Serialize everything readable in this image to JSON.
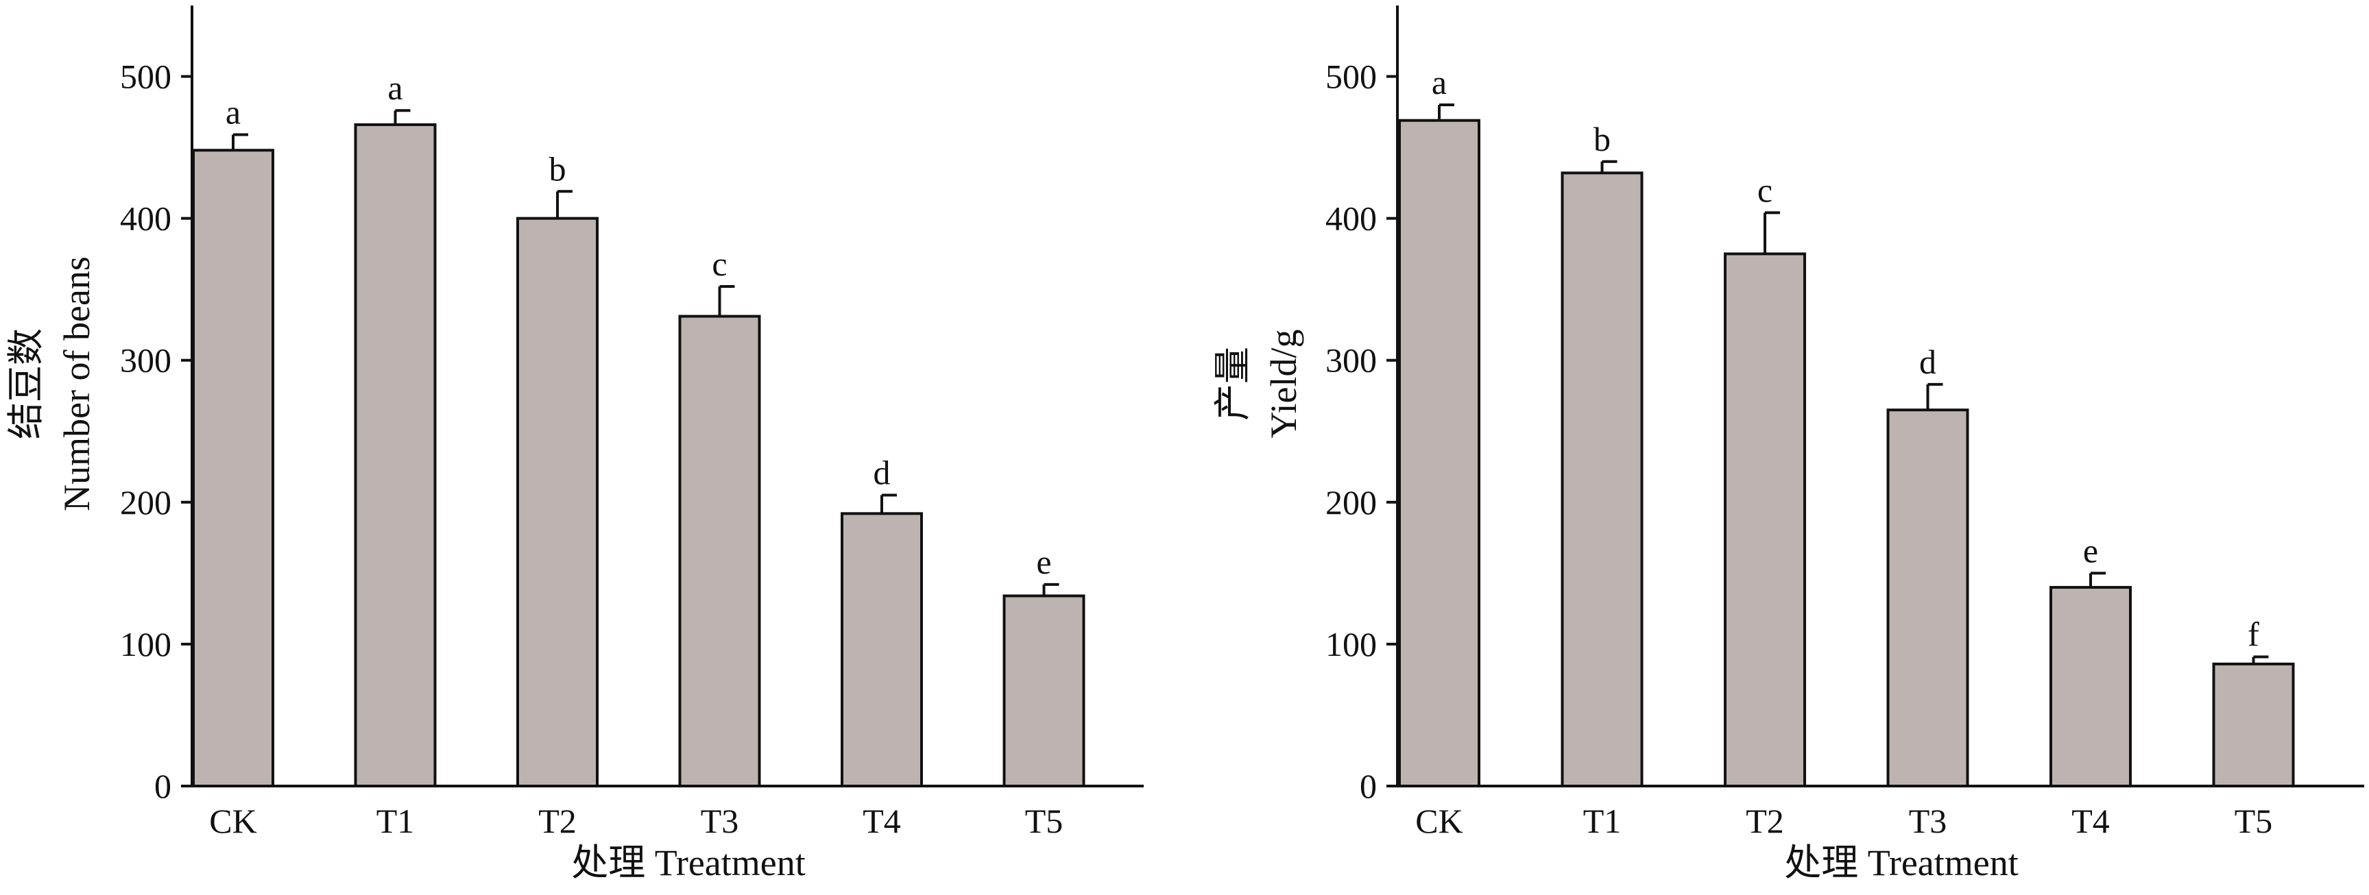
{
  "colors": {
    "bar_fill": "#bdb4b1",
    "bar_stroke": "#111111",
    "axis": "#111111"
  },
  "chart_data": [
    {
      "type": "bar",
      "title": "",
      "categories": [
        "CK",
        "T1",
        "T2",
        "T3",
        "T4",
        "T5"
      ],
      "values": [
        448,
        466,
        400,
        331,
        192,
        134
      ],
      "errors": [
        11,
        10,
        19,
        21,
        13,
        8
      ],
      "significance": [
        "a",
        "a",
        "b",
        "c",
        "d",
        "e"
      ],
      "xlabel": "处理  Treatment",
      "ylabel_cn": "结豆数",
      "ylabel": "Number of beans",
      "ylim": [
        0,
        550
      ],
      "yticks": [
        0,
        100,
        200,
        300,
        400,
        500
      ],
      "grid": false,
      "legend": "none"
    },
    {
      "type": "bar",
      "title": "",
      "categories": [
        "CK",
        "T1",
        "T2",
        "T3",
        "T4",
        "T5"
      ],
      "values": [
        469,
        432,
        375,
        265,
        140,
        86
      ],
      "errors": [
        11,
        8,
        29,
        18,
        10,
        5
      ],
      "significance": [
        "a",
        "b",
        "c",
        "d",
        "e",
        "f"
      ],
      "xlabel": "处理  Treatment",
      "ylabel_cn": "产量",
      "ylabel": "Yield/g",
      "ylim": [
        0,
        550
      ],
      "yticks": [
        0,
        100,
        200,
        300,
        400,
        500
      ],
      "grid": false,
      "legend": "none"
    }
  ]
}
